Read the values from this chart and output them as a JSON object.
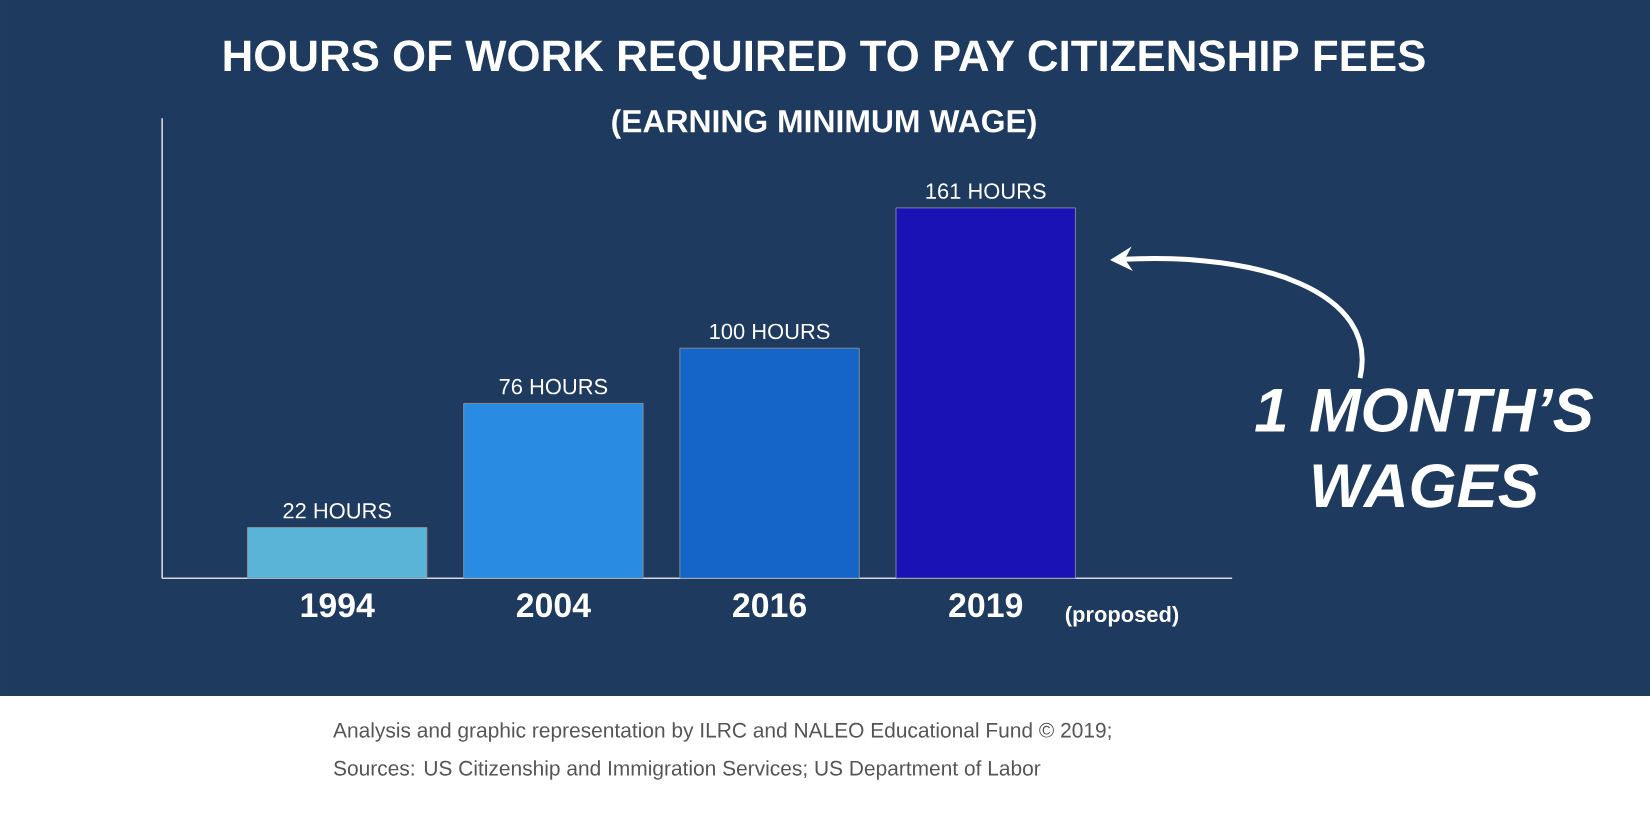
{
  "chart_data": {
    "type": "bar",
    "title": "HOURS OF WORK REQUIRED TO PAY CITIZENSHIP FEES",
    "subtitle": "(EARNING MINIMUM WAGE)",
    "categories": [
      "1994",
      "2004",
      "2016",
      "2019"
    ],
    "values": [
      22,
      76,
      100,
      161
    ],
    "colors": [
      "#5ab4d8",
      "#2a8be2",
      "#1565c9",
      "#1a12b5"
    ],
    "value_labels": [
      "22 HOURS",
      "76 HOURS",
      "100 HOURS",
      "161 HOURS"
    ],
    "ylim": [
      0,
      200
    ],
    "annotations": [
      "1 MONTH’S WAGES",
      "(proposed)",
      "Analysis and graphic representation by ILRC and NALEO Educational Fund © 2019;",
      "Sources: US Citizenship and Immigration Services; US Department of Labor"
    ]
  }
}
